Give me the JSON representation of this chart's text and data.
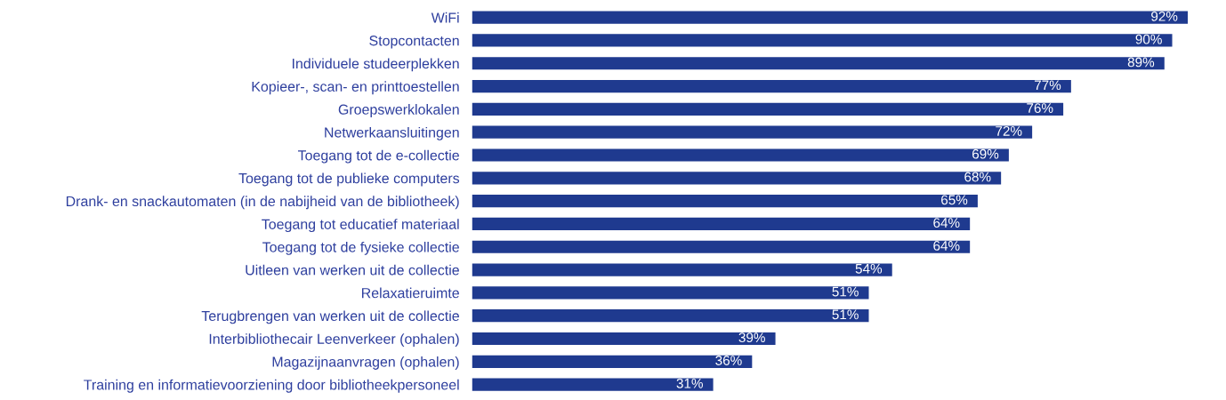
{
  "chart_data": {
    "type": "bar",
    "orientation": "horizontal",
    "categories": [
      "WiFi",
      "Stopcontacten",
      "Individuele studeerplekken",
      "Kopieer-, scan- en printtoestellen",
      "Groepswerklokalen",
      "Netwerkaansluitingen",
      "Toegang tot de e-collectie",
      "Toegang tot de publieke computers",
      "Drank- en snackautomaten (in de nabijheid van de bibliotheek)",
      "Toegang tot educatief materiaal",
      "Toegang tot de fysieke collectie",
      "Uitleen van werken uit de collectie",
      "Relaxatieruimte",
      "Terugbrengen van werken uit de collectie",
      "Interbibliothecair Leenverkeer (ophalen)",
      "Magazijnaanvragen (ophalen)",
      "Training en informatievoorziening door bibliotheekpersoneel"
    ],
    "values": [
      92,
      90,
      89,
      77,
      76,
      72,
      69,
      68,
      65,
      64,
      64,
      54,
      51,
      51,
      39,
      36,
      31
    ],
    "value_labels": [
      "92%",
      "90%",
      "89%",
      "77%",
      "76%",
      "72%",
      "69%",
      "68%",
      "65%",
      "64%",
      "64%",
      "54%",
      "51%",
      "51%",
      "39%",
      "36%",
      "31%"
    ],
    "color": "#1f3a8f",
    "tick_labels": "y",
    "grid": false,
    "legend": false
  }
}
